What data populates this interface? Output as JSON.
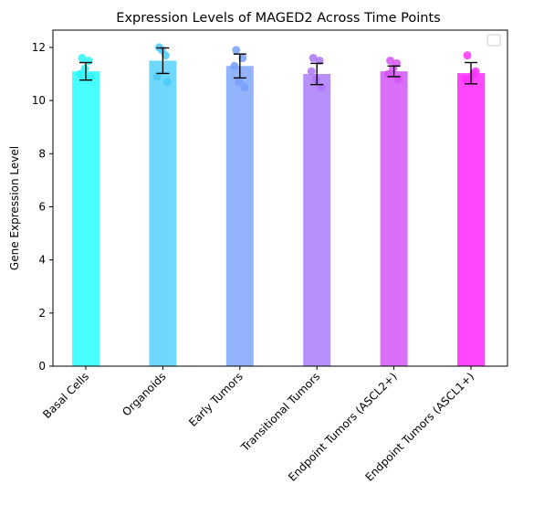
{
  "chart_data": {
    "type": "bar",
    "title": "Expression Levels of MAGED2 Across Time Points",
    "xlabel": "",
    "ylabel": "Gene Expression Level",
    "ylim": [
      0,
      12.65
    ],
    "yticks": [
      0,
      2,
      4,
      6,
      8,
      10,
      12
    ],
    "grid": false,
    "legend": "top-right (empty)",
    "categories": [
      "Basal Cells",
      "Organoids",
      "Early Tumors",
      "Transitional Tumors",
      "Endpoint Tumors (ASCL2+)",
      "Endpoint Tumors (ASCL1+)"
    ],
    "values": [
      11.1,
      11.5,
      11.3,
      11.0,
      11.1,
      11.03
    ],
    "error": [
      0.33,
      0.48,
      0.45,
      0.4,
      0.2,
      0.4
    ],
    "points": [
      [
        11.6,
        11.5,
        11.2,
        10.9,
        11.0
      ],
      [
        12.0,
        11.7,
        11.9,
        10.7,
        10.9
      ],
      [
        11.9,
        11.6,
        10.7,
        10.5,
        11.3
      ],
      [
        11.6,
        11.5,
        10.8,
        10.5,
        11.1
      ],
      [
        11.5,
        11.4,
        11.2,
        10.8,
        11.0
      ],
      [
        11.7,
        11.0,
        10.8,
        11.1,
        10.8
      ]
    ],
    "colors": [
      "#48ffff",
      "#6fd8fc",
      "#93b4fd",
      "#b890fb",
      "#d96ef8",
      "#ff48fe"
    ],
    "point_colors": [
      "#2ff5f5",
      "#4ccbf7",
      "#76a0fb",
      "#ad75f8",
      "#d454f4",
      "#fd33fb"
    ]
  }
}
